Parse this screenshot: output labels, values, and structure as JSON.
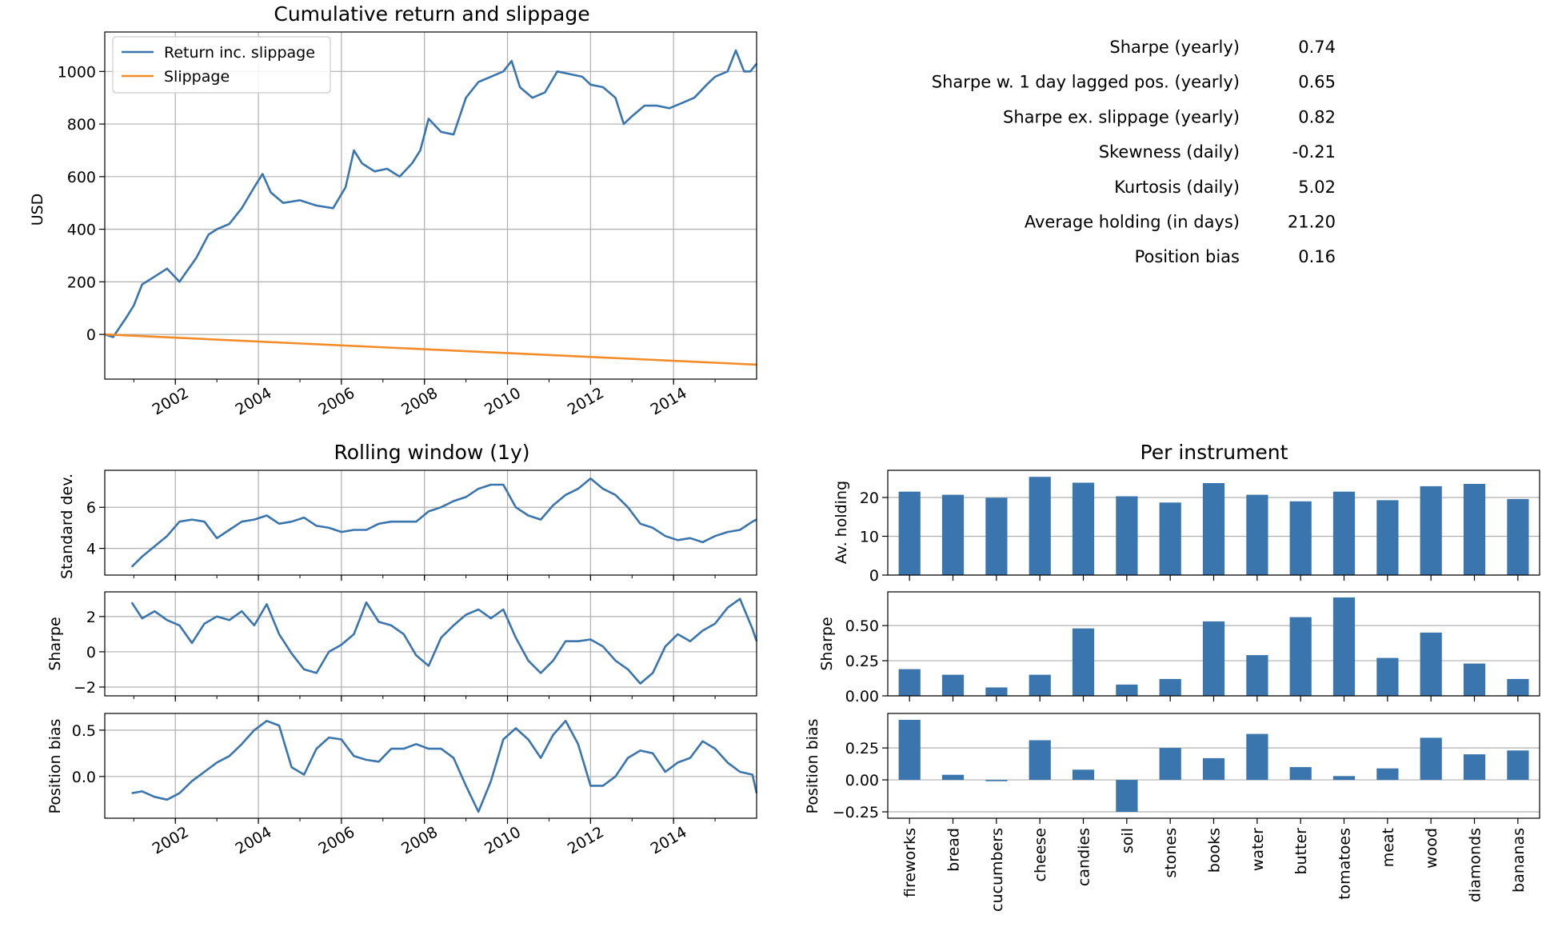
{
  "colors": {
    "return": "#3a75ae",
    "slippage": "#f28c28",
    "bar": "#3a75ae",
    "grid": "#b0b0b0"
  },
  "stats": [
    {
      "label": "Sharpe (yearly)",
      "value": "0.74"
    },
    {
      "label": "Sharpe w. 1 day lagged pos. (yearly)",
      "value": "0.65"
    },
    {
      "label": "Sharpe ex. slippage (yearly)",
      "value": "0.82"
    },
    {
      "label": "Skewness (daily)",
      "value": "-0.21"
    },
    {
      "label": "Kurtosis (daily)",
      "value": "5.02"
    },
    {
      "label": "Average holding (in days)",
      "value": "21.20"
    },
    {
      "label": "Position bias",
      "value": "0.16"
    }
  ],
  "chart_data": [
    {
      "id": "cumulative",
      "type": "line",
      "title": "Cumulative return and slippage",
      "ylabel": "USD",
      "xlim": [
        2000.3,
        2016.0
      ],
      "ylim": [
        -170,
        1150
      ],
      "yticks": [
        0,
        200,
        400,
        600,
        800,
        1000
      ],
      "xticks": [
        "2002",
        "2004",
        "2006",
        "2008",
        "2010",
        "2012",
        "2014"
      ],
      "grid": true,
      "legend": "top-left",
      "series": [
        {
          "name": "Return inc. slippage",
          "x": [
            2000.3,
            2000.5,
            2000.8,
            2001.0,
            2001.2,
            2001.5,
            2001.8,
            2002.1,
            2002.5,
            2002.8,
            2003.0,
            2003.3,
            2003.6,
            2003.9,
            2004.1,
            2004.3,
            2004.6,
            2005.0,
            2005.4,
            2005.8,
            2006.1,
            2006.3,
            2006.5,
            2006.8,
            2007.1,
            2007.4,
            2007.7,
            2007.9,
            2008.1,
            2008.4,
            2008.7,
            2009.0,
            2009.3,
            2009.6,
            2009.9,
            2010.1,
            2010.3,
            2010.6,
            2010.9,
            2011.2,
            2011.5,
            2011.8,
            2012.0,
            2012.3,
            2012.6,
            2012.8,
            2013.0,
            2013.3,
            2013.6,
            2013.9,
            2014.2,
            2014.5,
            2014.8,
            2015.0,
            2015.3,
            2015.5,
            2015.7,
            2015.85,
            2016.0
          ],
          "y": [
            0,
            -10,
            60,
            110,
            190,
            220,
            250,
            200,
            290,
            380,
            400,
            420,
            480,
            560,
            610,
            540,
            500,
            510,
            490,
            480,
            560,
            700,
            650,
            620,
            630,
            600,
            650,
            700,
            820,
            770,
            760,
            900,
            960,
            980,
            1000,
            1040,
            940,
            900,
            920,
            1000,
            990,
            980,
            950,
            940,
            900,
            800,
            830,
            870,
            870,
            860,
            880,
            900,
            950,
            980,
            1000,
            1080,
            1000,
            1000,
            1030
          ]
        },
        {
          "name": "Slippage",
          "x": [
            2000.3,
            2016.0
          ],
          "y": [
            0,
            -115
          ]
        }
      ]
    },
    {
      "id": "rolling-std",
      "type": "line",
      "title": "Rolling window (1y)",
      "ylabel": "Standard dev.",
      "xlim": [
        2000.3,
        2016.0
      ],
      "ylim": [
        2.7,
        7.8
      ],
      "yticks": [
        4,
        6
      ],
      "grid": true,
      "series": [
        {
          "name": "",
          "x": [
            2000.95,
            2001.2,
            2001.5,
            2001.8,
            2002.1,
            2002.4,
            2002.7,
            2003.0,
            2003.3,
            2003.6,
            2003.9,
            2004.2,
            2004.5,
            2004.8,
            2005.1,
            2005.4,
            2005.7,
            2006.0,
            2006.3,
            2006.6,
            2006.9,
            2007.2,
            2007.5,
            2007.8,
            2008.1,
            2008.4,
            2008.7,
            2009.0,
            2009.3,
            2009.6,
            2009.9,
            2010.2,
            2010.5,
            2010.8,
            2011.1,
            2011.4,
            2011.7,
            2012.0,
            2012.3,
            2012.6,
            2012.9,
            2013.2,
            2013.5,
            2013.8,
            2014.1,
            2014.4,
            2014.7,
            2015.0,
            2015.3,
            2015.6,
            2015.9,
            2016.0
          ],
          "y": [
            3.1,
            3.6,
            4.1,
            4.6,
            5.3,
            5.4,
            5.3,
            4.5,
            4.9,
            5.3,
            5.4,
            5.6,
            5.2,
            5.3,
            5.5,
            5.1,
            5.0,
            4.8,
            4.9,
            4.9,
            5.2,
            5.3,
            5.3,
            5.3,
            5.8,
            6.0,
            6.3,
            6.5,
            6.9,
            7.1,
            7.1,
            6.0,
            5.6,
            5.4,
            6.1,
            6.6,
            6.9,
            7.4,
            6.9,
            6.6,
            6.0,
            5.2,
            5.0,
            4.6,
            4.4,
            4.5,
            4.3,
            4.6,
            4.8,
            4.9,
            5.3,
            5.4
          ]
        }
      ]
    },
    {
      "id": "rolling-sharpe",
      "type": "line",
      "ylabel": "Sharpe",
      "xlim": [
        2000.3,
        2016.0
      ],
      "ylim": [
        -2.5,
        3.4
      ],
      "yticks": [
        -2,
        0,
        2
      ],
      "grid": true,
      "series": [
        {
          "name": "",
          "x": [
            2000.95,
            2001.2,
            2001.5,
            2001.8,
            2002.1,
            2002.4,
            2002.7,
            2003.0,
            2003.3,
            2003.6,
            2003.9,
            2004.2,
            2004.5,
            2004.8,
            2005.1,
            2005.4,
            2005.7,
            2006.0,
            2006.3,
            2006.6,
            2006.9,
            2007.2,
            2007.5,
            2007.8,
            2008.1,
            2008.4,
            2008.7,
            2009.0,
            2009.3,
            2009.6,
            2009.9,
            2010.2,
            2010.5,
            2010.8,
            2011.1,
            2011.4,
            2011.7,
            2012.0,
            2012.3,
            2012.6,
            2012.9,
            2013.2,
            2013.5,
            2013.8,
            2014.1,
            2014.4,
            2014.7,
            2015.0,
            2015.3,
            2015.6,
            2015.9,
            2016.0
          ],
          "y": [
            2.8,
            1.9,
            2.3,
            1.8,
            1.5,
            0.5,
            1.6,
            2.0,
            1.8,
            2.3,
            1.5,
            2.7,
            1.0,
            -0.1,
            -1.0,
            -1.2,
            0.0,
            0.4,
            1.0,
            2.8,
            1.7,
            1.5,
            1.0,
            -0.2,
            -0.8,
            0.8,
            1.5,
            2.1,
            2.4,
            1.9,
            2.4,
            0.8,
            -0.5,
            -1.2,
            -0.5,
            0.6,
            0.6,
            0.7,
            0.3,
            -0.5,
            -1.0,
            -1.8,
            -1.2,
            0.3,
            1.0,
            0.6,
            1.2,
            1.6,
            2.5,
            3.0,
            1.3,
            0.6
          ]
        }
      ]
    },
    {
      "id": "rolling-bias",
      "type": "line",
      "ylabel": "Position bias",
      "xlim": [
        2000.3,
        2016.0
      ],
      "ylim": [
        -0.45,
        0.68
      ],
      "yticks": [
        0.0,
        0.5
      ],
      "xticks": [
        "2002",
        "2004",
        "2006",
        "2008",
        "2010",
        "2012",
        "2014"
      ],
      "grid": true,
      "series": [
        {
          "name": "",
          "x": [
            2000.95,
            2001.2,
            2001.5,
            2001.8,
            2002.1,
            2002.4,
            2002.7,
            2003.0,
            2003.3,
            2003.6,
            2003.9,
            2004.2,
            2004.5,
            2004.8,
            2005.1,
            2005.4,
            2005.7,
            2006.0,
            2006.3,
            2006.6,
            2006.9,
            2007.2,
            2007.5,
            2007.8,
            2008.1,
            2008.4,
            2008.7,
            2009.0,
            2009.3,
            2009.6,
            2009.9,
            2010.2,
            2010.5,
            2010.8,
            2011.1,
            2011.4,
            2011.7,
            2012.0,
            2012.3,
            2012.6,
            2012.9,
            2013.2,
            2013.5,
            2013.8,
            2014.1,
            2014.4,
            2014.7,
            2015.0,
            2015.3,
            2015.6,
            2015.9,
            2016.0
          ],
          "y": [
            -0.18,
            -0.16,
            -0.22,
            -0.25,
            -0.18,
            -0.05,
            0.05,
            0.15,
            0.22,
            0.35,
            0.5,
            0.6,
            0.55,
            0.1,
            0.02,
            0.3,
            0.42,
            0.4,
            0.22,
            0.18,
            0.16,
            0.3,
            0.3,
            0.35,
            0.3,
            0.3,
            0.2,
            -0.1,
            -0.38,
            -0.05,
            0.4,
            0.52,
            0.4,
            0.2,
            0.45,
            0.6,
            0.35,
            -0.1,
            -0.1,
            0.0,
            0.2,
            0.28,
            0.25,
            0.05,
            0.15,
            0.2,
            0.38,
            0.3,
            0.15,
            0.05,
            0.02,
            -0.18
          ]
        }
      ]
    },
    {
      "id": "per-instrument-holding",
      "type": "bar",
      "title": "Per instrument",
      "ylabel": "Av. holding",
      "ylim": [
        0,
        27
      ],
      "yticks": [
        0,
        10,
        20
      ],
      "grid": true,
      "categories": [
        "fireworks",
        "bread",
        "cucumbers",
        "cheese",
        "candies",
        "soil",
        "stones",
        "books",
        "water",
        "butter",
        "tomatoes",
        "meat",
        "wood",
        "diamonds",
        "bananas"
      ],
      "values": [
        21.5,
        20.7,
        19.9,
        25.3,
        23.8,
        20.3,
        18.7,
        23.7,
        20.7,
        19.0,
        21.5,
        19.3,
        22.9,
        23.5,
        19.6
      ]
    },
    {
      "id": "per-instrument-sharpe",
      "type": "bar",
      "ylabel": "Sharpe",
      "ylim": [
        0,
        0.74
      ],
      "yticks": [
        0.0,
        0.25,
        0.5
      ],
      "ytick_labels": [
        "0.00",
        "0.25",
        "0.50"
      ],
      "grid": true,
      "categories": [
        "fireworks",
        "bread",
        "cucumbers",
        "cheese",
        "candies",
        "soil",
        "stones",
        "books",
        "water",
        "butter",
        "tomatoes",
        "meat",
        "wood",
        "diamonds",
        "bananas"
      ],
      "values": [
        0.19,
        0.15,
        0.06,
        0.15,
        0.48,
        0.08,
        0.12,
        0.53,
        0.29,
        0.56,
        0.7,
        0.27,
        0.45,
        0.23,
        0.12
      ]
    },
    {
      "id": "per-instrument-bias",
      "type": "bar",
      "ylabel": "Position bias",
      "ylim": [
        -0.3,
        0.52
      ],
      "yticks": [
        -0.25,
        0.0,
        0.25
      ],
      "ytick_labels": [
        "−0.25",
        "0.00",
        "0.25"
      ],
      "grid": true,
      "categories": [
        "fireworks",
        "bread",
        "cucumbers",
        "cheese",
        "candies",
        "soil",
        "stones",
        "books",
        "water",
        "butter",
        "tomatoes",
        "meat",
        "wood",
        "diamonds",
        "bananas"
      ],
      "values": [
        0.47,
        0.04,
        -0.01,
        0.31,
        0.08,
        -0.25,
        0.25,
        0.17,
        0.36,
        0.1,
        0.03,
        0.09,
        0.33,
        0.2,
        0.23
      ]
    }
  ]
}
